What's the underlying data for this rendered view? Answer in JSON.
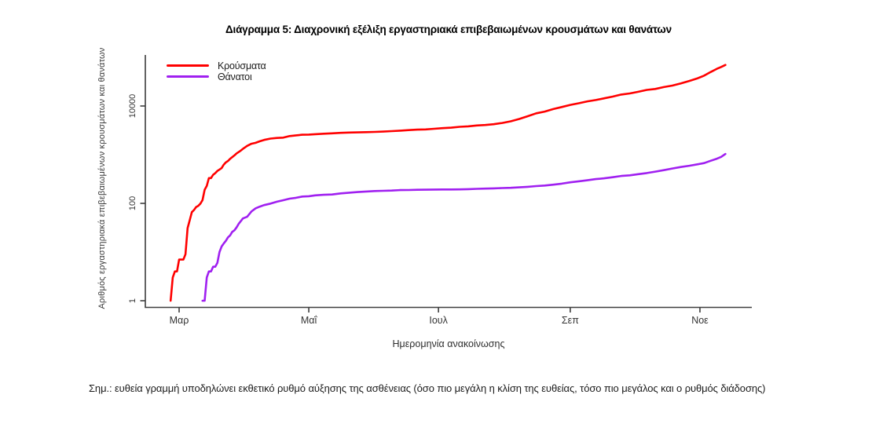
{
  "chart_data": {
    "type": "line",
    "title": "Διάγραμμα 5: Διαχρονική εξέλιξη εργαστηριακά επιβεβαιωμένων κρουσμάτων και θανάτων",
    "xlabel": "Ημερομηνία ανακοίνωσης",
    "ylabel": "Αριθμός εργαστηριακά επιβεβαιωμένων κρουσμάτων και θανάτων",
    "y_scale": "log10",
    "ylim": [
      1,
      100000
    ],
    "y_ticks": [
      1,
      100,
      10000
    ],
    "x_ticks": [
      {
        "label": "Μαρ",
        "date": "2020-03-01"
      },
      {
        "label": "Μαΐ",
        "date": "2020-05-01"
      },
      {
        "label": "Ιουλ",
        "date": "2020-07-01"
      },
      {
        "label": "Σεπ",
        "date": "2020-09-01"
      },
      {
        "label": "Νοε",
        "date": "2020-11-01"
      }
    ],
    "x_range": [
      "2020-02-14",
      "2020-11-22"
    ],
    "grid": false,
    "legend_position": "top-left",
    "colors": {
      "axis": "#3d3d3d",
      "tick_text": "#333333"
    },
    "series": [
      {
        "key": "cases",
        "name": "Κρούσματα",
        "color": "#ff0000",
        "points": [
          [
            "2020-02-26",
            1
          ],
          [
            "2020-02-27",
            3
          ],
          [
            "2020-02-28",
            4
          ],
          [
            "2020-02-29",
            4
          ],
          [
            "2020-03-01",
            7
          ],
          [
            "2020-03-03",
            7
          ],
          [
            "2020-03-04",
            9
          ],
          [
            "2020-03-05",
            31
          ],
          [
            "2020-03-06",
            45
          ],
          [
            "2020-03-07",
            66
          ],
          [
            "2020-03-08",
            73
          ],
          [
            "2020-03-09",
            84
          ],
          [
            "2020-03-10",
            89
          ],
          [
            "2020-03-11",
            99
          ],
          [
            "2020-03-12",
            117
          ],
          [
            "2020-03-13",
            190
          ],
          [
            "2020-03-14",
            228
          ],
          [
            "2020-03-15",
            331
          ],
          [
            "2020-03-16",
            331
          ],
          [
            "2020-03-17",
            387
          ],
          [
            "2020-03-18",
            418
          ],
          [
            "2020-03-19",
            464
          ],
          [
            "2020-03-20",
            495
          ],
          [
            "2020-03-21",
            530
          ],
          [
            "2020-03-22",
            624
          ],
          [
            "2020-03-23",
            695
          ],
          [
            "2020-03-24",
            743
          ],
          [
            "2020-03-25",
            821
          ],
          [
            "2020-03-26",
            892
          ],
          [
            "2020-03-27",
            966
          ],
          [
            "2020-03-28",
            1061
          ],
          [
            "2020-03-30",
            1212
          ],
          [
            "2020-03-31",
            1314
          ],
          [
            "2020-04-02",
            1514
          ],
          [
            "2020-04-04",
            1673
          ],
          [
            "2020-04-06",
            1755
          ],
          [
            "2020-04-08",
            1884
          ],
          [
            "2020-04-10",
            2011
          ],
          [
            "2020-04-13",
            2145
          ],
          [
            "2020-04-16",
            2207
          ],
          [
            "2020-04-19",
            2235
          ],
          [
            "2020-04-22",
            2408
          ],
          [
            "2020-04-25",
            2490
          ],
          [
            "2020-04-28",
            2566
          ],
          [
            "2020-05-01",
            2591
          ],
          [
            "2020-05-04",
            2632
          ],
          [
            "2020-05-08",
            2691
          ],
          [
            "2020-05-12",
            2744
          ],
          [
            "2020-05-16",
            2810
          ],
          [
            "2020-05-20",
            2850
          ],
          [
            "2020-05-24",
            2876
          ],
          [
            "2020-05-28",
            2906
          ],
          [
            "2020-06-01",
            2937
          ],
          [
            "2020-06-05",
            2980
          ],
          [
            "2020-06-09",
            3049
          ],
          [
            "2020-06-13",
            3112
          ],
          [
            "2020-06-17",
            3203
          ],
          [
            "2020-06-21",
            3266
          ],
          [
            "2020-06-25",
            3310
          ],
          [
            "2020-06-29",
            3409
          ],
          [
            "2020-07-03",
            3511
          ],
          [
            "2020-07-07",
            3589
          ],
          [
            "2020-07-11",
            3732
          ],
          [
            "2020-07-15",
            3826
          ],
          [
            "2020-07-19",
            3983
          ],
          [
            "2020-07-23",
            4077
          ],
          [
            "2020-07-27",
            4227
          ],
          [
            "2020-07-31",
            4477
          ],
          [
            "2020-08-04",
            4855
          ],
          [
            "2020-08-08",
            5421
          ],
          [
            "2020-08-12",
            6177
          ],
          [
            "2020-08-16",
            7075
          ],
          [
            "2020-08-20",
            7684
          ],
          [
            "2020-08-24",
            8664
          ],
          [
            "2020-08-28",
            9531
          ],
          [
            "2020-09-01",
            10524
          ],
          [
            "2020-09-05",
            11386
          ],
          [
            "2020-09-09",
            12452
          ],
          [
            "2020-09-13",
            13240
          ],
          [
            "2020-09-17",
            14400
          ],
          [
            "2020-09-21",
            15595
          ],
          [
            "2020-09-25",
            17228
          ],
          [
            "2020-09-29",
            18123
          ],
          [
            "2020-10-03",
            19613
          ],
          [
            "2020-10-07",
            21381
          ],
          [
            "2020-10-11",
            22358
          ],
          [
            "2020-10-15",
            24450
          ],
          [
            "2020-10-19",
            26301
          ],
          [
            "2020-10-23",
            29057
          ],
          [
            "2020-10-27",
            32752
          ],
          [
            "2020-10-31",
            37196
          ],
          [
            "2020-11-03",
            42080
          ],
          [
            "2020-11-06",
            49807
          ],
          [
            "2020-11-09",
            58187
          ],
          [
            "2020-11-11",
            63321
          ],
          [
            "2020-11-13",
            69675
          ]
        ]
      },
      {
        "key": "deaths",
        "name": "Θάνατοι",
        "color": "#a020f0",
        "points": [
          [
            "2020-03-12",
            1
          ],
          [
            "2020-03-13",
            1
          ],
          [
            "2020-03-14",
            3
          ],
          [
            "2020-03-15",
            4
          ],
          [
            "2020-03-16",
            4
          ],
          [
            "2020-03-17",
            5
          ],
          [
            "2020-03-18",
            5
          ],
          [
            "2020-03-19",
            6
          ],
          [
            "2020-03-20",
            10
          ],
          [
            "2020-03-21",
            13
          ],
          [
            "2020-03-22",
            15
          ],
          [
            "2020-03-23",
            17
          ],
          [
            "2020-03-24",
            20
          ],
          [
            "2020-03-25",
            22
          ],
          [
            "2020-03-26",
            26
          ],
          [
            "2020-03-27",
            28
          ],
          [
            "2020-03-28",
            32
          ],
          [
            "2020-03-29",
            38
          ],
          [
            "2020-03-30",
            43
          ],
          [
            "2020-03-31",
            49
          ],
          [
            "2020-04-02",
            53
          ],
          [
            "2020-04-04",
            68
          ],
          [
            "2020-04-06",
            79
          ],
          [
            "2020-04-08",
            86
          ],
          [
            "2020-04-10",
            92
          ],
          [
            "2020-04-13",
            99
          ],
          [
            "2020-04-16",
            108
          ],
          [
            "2020-04-19",
            116
          ],
          [
            "2020-04-22",
            125
          ],
          [
            "2020-04-25",
            130
          ],
          [
            "2020-04-28",
            138
          ],
          [
            "2020-05-01",
            140
          ],
          [
            "2020-05-04",
            146
          ],
          [
            "2020-05-08",
            150
          ],
          [
            "2020-05-12",
            152
          ],
          [
            "2020-05-16",
            160
          ],
          [
            "2020-05-20",
            166
          ],
          [
            "2020-05-24",
            171
          ],
          [
            "2020-05-28",
            175
          ],
          [
            "2020-06-01",
            179
          ],
          [
            "2020-06-05",
            181
          ],
          [
            "2020-06-09",
            183
          ],
          [
            "2020-06-13",
            187
          ],
          [
            "2020-06-17",
            188
          ],
          [
            "2020-06-21",
            190
          ],
          [
            "2020-06-25",
            191
          ],
          [
            "2020-06-29",
            192
          ],
          [
            "2020-07-03",
            193
          ],
          [
            "2020-07-07",
            193
          ],
          [
            "2020-07-11",
            194
          ],
          [
            "2020-07-15",
            196
          ],
          [
            "2020-07-19",
            199
          ],
          [
            "2020-07-23",
            201
          ],
          [
            "2020-07-27",
            203
          ],
          [
            "2020-07-31",
            206
          ],
          [
            "2020-08-04",
            209
          ],
          [
            "2020-08-08",
            213
          ],
          [
            "2020-08-12",
            219
          ],
          [
            "2020-08-16",
            226
          ],
          [
            "2020-08-20",
            232
          ],
          [
            "2020-08-24",
            242
          ],
          [
            "2020-08-28",
            254
          ],
          [
            "2020-09-01",
            271
          ],
          [
            "2020-09-05",
            284
          ],
          [
            "2020-09-09",
            298
          ],
          [
            "2020-09-13",
            315
          ],
          [
            "2020-09-17",
            327
          ],
          [
            "2020-09-21",
            344
          ],
          [
            "2020-09-25",
            366
          ],
          [
            "2020-09-29",
            376
          ],
          [
            "2020-10-03",
            398
          ],
          [
            "2020-10-07",
            420
          ],
          [
            "2020-10-11",
            449
          ],
          [
            "2020-10-15",
            482
          ],
          [
            "2020-10-19",
            520
          ],
          [
            "2020-10-23",
            559
          ],
          [
            "2020-10-27",
            593
          ],
          [
            "2020-10-31",
            635
          ],
          [
            "2020-11-03",
            673
          ],
          [
            "2020-11-06",
            749
          ],
          [
            "2020-11-09",
            826
          ],
          [
            "2020-11-11",
            902
          ],
          [
            "2020-11-13",
            1035
          ]
        ]
      }
    ]
  },
  "note": "Σημ.: ευθεία γραμμή υποδηλώνει εκθετικό ρυθμό αύξησης της ασθένειας (όσο πιο μεγάλη η κλίση της ευθείας, τόσο πιο μεγάλος και ο ρυθμός διάδοσης)"
}
